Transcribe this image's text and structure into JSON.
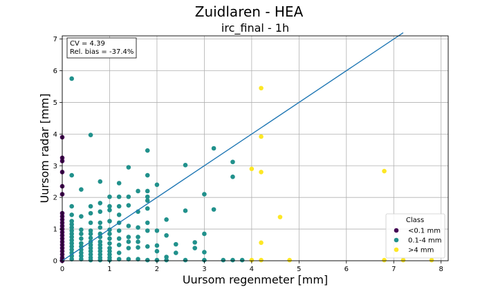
{
  "chart_data": {
    "type": "scatter",
    "suptitle": "Zuidlaren - HEA",
    "title": "irc_final - 1h",
    "xlabel": "Uursom regenmeter [mm]",
    "ylabel": "Uursom radar [mm]",
    "xlim": [
      0,
      8.15
    ],
    "ylim": [
      0,
      7.1
    ],
    "xticks": [
      "0",
      "1",
      "2",
      "3",
      "4",
      "5",
      "6",
      "7",
      "8"
    ],
    "yticks": [
      "0",
      "1",
      "2",
      "3",
      "4",
      "5",
      "6",
      "7"
    ],
    "grid": true,
    "annotation": [
      "CV = 4.39",
      "Rel. bias = -37.4%"
    ],
    "legend": {
      "title": "Class",
      "position": "lower-right"
    },
    "reference_line": {
      "x": [
        0,
        7.2
      ],
      "y": [
        0,
        7.2
      ],
      "color": "#1f77b4"
    },
    "series": [
      {
        "name": "<0.1 mm",
        "color": "#440154",
        "points": [
          [
            0,
            3.9
          ],
          [
            0,
            3.25
          ],
          [
            0,
            3.15
          ],
          [
            0,
            2.8
          ],
          [
            0,
            2.35
          ],
          [
            0,
            2.1
          ],
          [
            0,
            1.5
          ],
          [
            0,
            1.4
          ],
          [
            0,
            1.3
          ],
          [
            0,
            1.2
          ],
          [
            0,
            1.1
          ],
          [
            0,
            1.0
          ],
          [
            0,
            0.9
          ],
          [
            0,
            0.8
          ],
          [
            0,
            0.7
          ],
          [
            0,
            0.6
          ],
          [
            0,
            0.5
          ],
          [
            0,
            0.4
          ],
          [
            0,
            0.3
          ],
          [
            0,
            0.2
          ],
          [
            0,
            0.1
          ],
          [
            0,
            0.05
          ],
          [
            0,
            0.0
          ]
        ]
      },
      {
        "name": "0.1-4 mm",
        "color": "#21918c",
        "points": [
          [
            0.2,
            5.75
          ],
          [
            0.6,
            3.97
          ],
          [
            0.2,
            2.7
          ],
          [
            0.4,
            2.25
          ],
          [
            0.8,
            2.5
          ],
          [
            1.2,
            2.45
          ],
          [
            1.4,
            2.95
          ],
          [
            1.8,
            3.48
          ],
          [
            1.8,
            2.7
          ],
          [
            2.0,
            2.4
          ],
          [
            2.6,
            3.02
          ],
          [
            3.2,
            3.55
          ],
          [
            3.6,
            3.12
          ],
          [
            3.6,
            2.65
          ],
          [
            3.0,
            2.1
          ],
          [
            3.2,
            1.62
          ],
          [
            2.6,
            1.58
          ],
          [
            0.2,
            1.72
          ],
          [
            0.2,
            1.45
          ],
          [
            0.2,
            1.25
          ],
          [
            0.2,
            1.15
          ],
          [
            0.2,
            1.05
          ],
          [
            0.2,
            0.95
          ],
          [
            0.2,
            0.85
          ],
          [
            0.2,
            0.75
          ],
          [
            0.2,
            0.65
          ],
          [
            0.2,
            0.55
          ],
          [
            0.2,
            0.45
          ],
          [
            0.2,
            0.35
          ],
          [
            0.2,
            0.25
          ],
          [
            0.2,
            0.15
          ],
          [
            0.2,
            0.05
          ],
          [
            0.4,
            1.4
          ],
          [
            0.4,
            0.98
          ],
          [
            0.4,
            0.85
          ],
          [
            0.4,
            0.7
          ],
          [
            0.4,
            0.55
          ],
          [
            0.4,
            0.45
          ],
          [
            0.4,
            0.35
          ],
          [
            0.4,
            0.25
          ],
          [
            0.4,
            0.15
          ],
          [
            0.4,
            0.05
          ],
          [
            0.6,
            1.72
          ],
          [
            0.6,
            1.5
          ],
          [
            0.6,
            1.2
          ],
          [
            0.6,
            0.95
          ],
          [
            0.6,
            0.85
          ],
          [
            0.6,
            0.72
          ],
          [
            0.6,
            0.6
          ],
          [
            0.6,
            0.5
          ],
          [
            0.6,
            0.4
          ],
          [
            0.6,
            0.3
          ],
          [
            0.6,
            0.2
          ],
          [
            0.6,
            0.1
          ],
          [
            0.6,
            0.02
          ],
          [
            0.8,
            1.82
          ],
          [
            0.8,
            1.55
          ],
          [
            0.8,
            1.2
          ],
          [
            0.8,
            1.05
          ],
          [
            0.8,
            0.85
          ],
          [
            0.8,
            0.75
          ],
          [
            0.8,
            0.6
          ],
          [
            0.8,
            0.5
          ],
          [
            0.8,
            0.4
          ],
          [
            0.8,
            0.3
          ],
          [
            0.8,
            0.2
          ],
          [
            0.8,
            0.1
          ],
          [
            0.8,
            0.02
          ],
          [
            1.0,
            2.02
          ],
          [
            1.0,
            1.72
          ],
          [
            1.0,
            1.6
          ],
          [
            1.0,
            1.25
          ],
          [
            1.0,
            0.98
          ],
          [
            1.0,
            0.85
          ],
          [
            1.0,
            0.7
          ],
          [
            1.0,
            0.55
          ],
          [
            1.0,
            0.4
          ],
          [
            1.0,
            0.3
          ],
          [
            1.0,
            0.2
          ],
          [
            1.0,
            0.1
          ],
          [
            1.0,
            0.02
          ],
          [
            1.2,
            2.02
          ],
          [
            1.2,
            1.72
          ],
          [
            1.2,
            1.45
          ],
          [
            1.2,
            1.2
          ],
          [
            1.2,
            0.95
          ],
          [
            1.2,
            0.7
          ],
          [
            1.2,
            0.5
          ],
          [
            1.2,
            0.25
          ],
          [
            1.2,
            0.05
          ],
          [
            1.4,
            2.02
          ],
          [
            1.4,
            1.75
          ],
          [
            1.4,
            1.1
          ],
          [
            1.4,
            0.75
          ],
          [
            1.4,
            0.6
          ],
          [
            1.4,
            0.4
          ],
          [
            1.4,
            0.05
          ],
          [
            1.6,
            2.2
          ],
          [
            1.6,
            1.55
          ],
          [
            1.6,
            1.05
          ],
          [
            1.6,
            0.75
          ],
          [
            1.6,
            0.6
          ],
          [
            1.6,
            0.42
          ],
          [
            1.6,
            0.05
          ],
          [
            1.8,
            2.2
          ],
          [
            1.8,
            2.02
          ],
          [
            1.8,
            1.9
          ],
          [
            1.8,
            1.65
          ],
          [
            1.8,
            1.2
          ],
          [
            1.8,
            0.95
          ],
          [
            1.8,
            0.45
          ],
          [
            1.8,
            0.02
          ],
          [
            2.0,
            0.95
          ],
          [
            2.0,
            0.48
          ],
          [
            2.0,
            0.3
          ],
          [
            2.0,
            0.02
          ],
          [
            2.2,
            1.3
          ],
          [
            2.2,
            0.8
          ],
          [
            2.2,
            0.12
          ],
          [
            2.2,
            0.02
          ],
          [
            2.4,
            0.52
          ],
          [
            2.4,
            0.25
          ],
          [
            2.6,
            0.02
          ],
          [
            2.8,
            0.58
          ],
          [
            2.8,
            0.4
          ],
          [
            3.0,
            0.85
          ],
          [
            3.0,
            0.27
          ],
          [
            3.0,
            0.02
          ],
          [
            3.4,
            0.02
          ],
          [
            3.6,
            0.02
          ],
          [
            3.8,
            0.02
          ]
        ]
      },
      {
        "name": ">4 mm",
        "color": "#fde725",
        "points": [
          [
            4.2,
            5.45
          ],
          [
            4.2,
            3.92
          ],
          [
            4.0,
            2.9
          ],
          [
            4.2,
            2.8
          ],
          [
            4.6,
            1.38
          ],
          [
            4.2,
            0.57
          ],
          [
            4.0,
            0.02
          ],
          [
            4.2,
            0.02
          ],
          [
            4.8,
            0.02
          ],
          [
            6.8,
            2.83
          ],
          [
            6.8,
            0.02
          ],
          [
            7.2,
            0.02
          ],
          [
            7.8,
            0.02
          ]
        ]
      }
    ]
  }
}
